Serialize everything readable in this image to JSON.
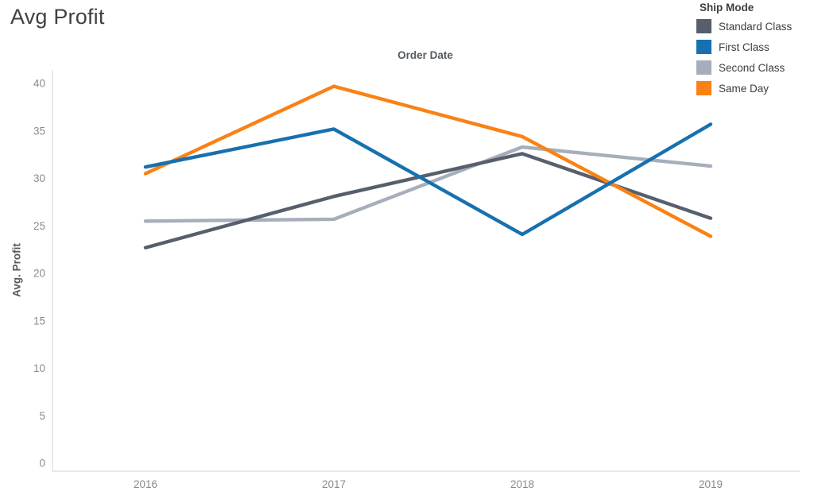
{
  "page": {
    "title": "Avg Profit"
  },
  "legend": {
    "title": "Ship Mode"
  },
  "chart_data": {
    "type": "line",
    "title": "Avg Profit",
    "xlabel": "Order Date",
    "ylabel": "Avg. Profit",
    "categories": [
      "2016",
      "2017",
      "2018",
      "2019"
    ],
    "yticks": [
      0,
      5,
      10,
      15,
      20,
      25,
      30,
      35,
      40
    ],
    "ylim": [
      0,
      41.4
    ],
    "grid": false,
    "legend_position": "top-right",
    "axis_color": "#e1e1e1",
    "tick_label_color": "#8a8a8a",
    "series": [
      {
        "name": "Standard Class",
        "color": "#575f6d",
        "values": [
          22.7,
          28.1,
          32.6,
          25.8
        ]
      },
      {
        "name": "First Class",
        "color": "#1770af",
        "values": [
          31.2,
          35.2,
          24.1,
          35.7
        ]
      },
      {
        "name": "Second Class",
        "color": "#a6aebb",
        "values": [
          25.5,
          25.7,
          33.3,
          31.3
        ]
      },
      {
        "name": "Same Day",
        "color": "#fa8114",
        "values": [
          30.5,
          39.7,
          34.4,
          23.9
        ]
      }
    ],
    "draw_order": [
      "Second Class",
      "Standard Class",
      "Same Day",
      "First Class"
    ]
  }
}
